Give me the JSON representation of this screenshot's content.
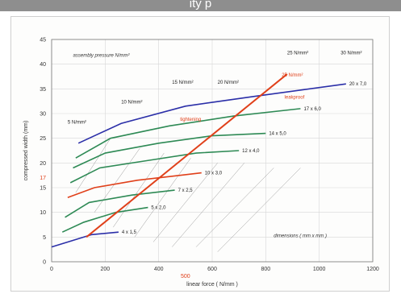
{
  "header": {
    "title": "ity p"
  },
  "chart_data": {
    "type": "line",
    "xlabel": "linear force ( N/mm )",
    "ylabel": "compressed width (mm)",
    "xlim": [
      0,
      1200
    ],
    "ylim": [
      0,
      45
    ],
    "xticks": [
      0,
      200,
      400,
      600,
      800,
      1000,
      1200
    ],
    "yticks": [
      0,
      5,
      10,
      15,
      20,
      25,
      30,
      35,
      40,
      45
    ],
    "highlight": {
      "x_label": "500",
      "y_label": "17"
    },
    "annotations": {
      "assembly": "assembly pressure N/mm²",
      "dimensions": "dimensions ( mm x mm )",
      "tight": "tightening",
      "loose": "leakproof",
      "sealing": "25 N/mm²"
    },
    "pressure_labels": [
      "5 N/mm²",
      "10 N/mm²",
      "15 N/mm²",
      "20 N/mm²",
      "25 N/mm²",
      "30 N/mm²"
    ],
    "series": [
      {
        "name": "4 x 1,5",
        "color": "#2b2fa8",
        "x": [
          0,
          60,
          150,
          250
        ],
        "y": [
          3,
          4,
          5.5,
          6
        ]
      },
      {
        "name": "5 x 2,0",
        "color": "#2e8a55",
        "x": [
          40,
          120,
          240,
          360
        ],
        "y": [
          6,
          8,
          10,
          11
        ]
      },
      {
        "name": "7 x 2,5",
        "color": "#2e8a55",
        "x": [
          50,
          140,
          300,
          460
        ],
        "y": [
          9,
          12,
          13.5,
          14.5
        ]
      },
      {
        "name": "10 x 3,0",
        "color": "#e0401a",
        "x": [
          60,
          160,
          320,
          480,
          560
        ],
        "y": [
          13,
          15,
          16.5,
          17.5,
          18
        ]
      },
      {
        "name": "12 x 4,0",
        "color": "#2e8a55",
        "x": [
          70,
          180,
          360,
          540,
          700
        ],
        "y": [
          16,
          19,
          20.5,
          22,
          22.5
        ]
      },
      {
        "name": "14 x 5,0",
        "color": "#2e8a55",
        "x": [
          80,
          200,
          400,
          600,
          800
        ],
        "y": [
          19,
          22,
          24,
          25.5,
          26
        ]
      },
      {
        "name": "17 x 6,0",
        "color": "#2e8a55",
        "x": [
          90,
          220,
          440,
          680,
          930
        ],
        "y": [
          21,
          25,
          27.5,
          29.5,
          31
        ]
      },
      {
        "name": "20 x 7,0",
        "color": "#2b2fa8",
        "x": [
          100,
          260,
          500,
          760,
          1100
        ],
        "y": [
          24,
          28,
          31.5,
          33.5,
          36
        ]
      }
    ],
    "red_line": {
      "x": [
        130,
        880
      ],
      "y": [
        5,
        38
      ]
    }
  }
}
